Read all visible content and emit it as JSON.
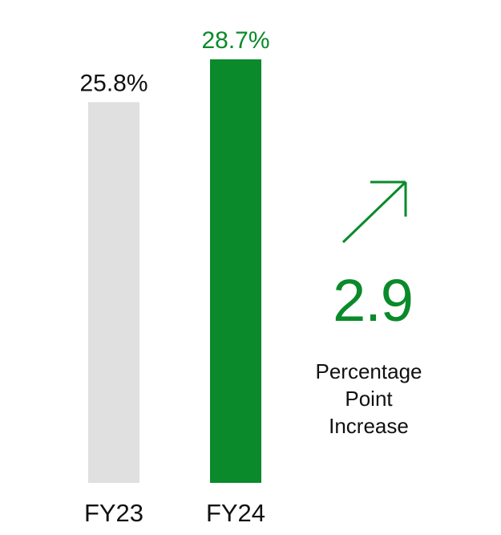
{
  "chart_data": {
    "type": "bar",
    "categories": [
      "FY23",
      "FY24"
    ],
    "values": [
      25.8,
      28.7
    ],
    "data_labels": [
      "25.8%",
      "28.7%"
    ],
    "bar_colors": [
      "#e0e0e0",
      "#0a8a2a"
    ],
    "label_colors": [
      "#111111",
      "#0a8a2a"
    ],
    "ylim": [
      0,
      28.7
    ],
    "grid": false,
    "title": "",
    "xlabel": "",
    "ylabel": ""
  },
  "callout": {
    "icon": "arrow-up-right-icon",
    "value": "2.9",
    "caption_lines": [
      "Percentage",
      "Point",
      "Increase"
    ],
    "accent_color": "#0a8a2a"
  }
}
